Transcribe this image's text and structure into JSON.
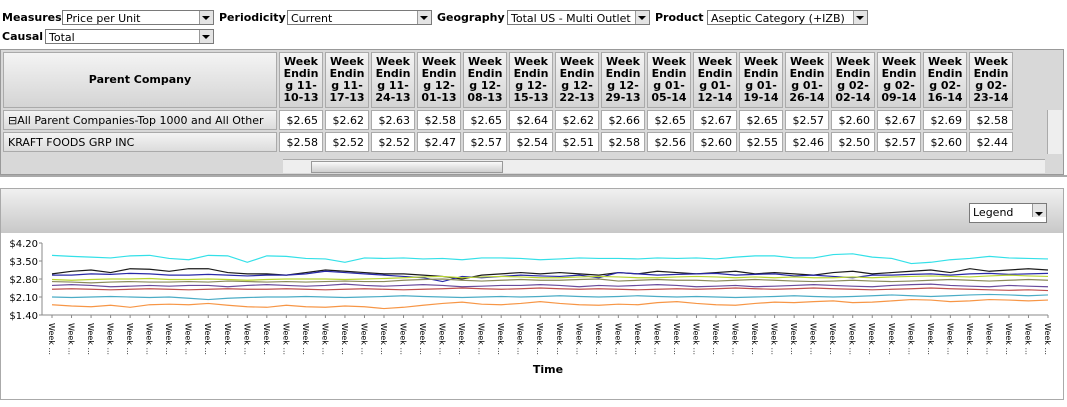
{
  "filters": [
    {
      "label": "Measures",
      "value": "Price per Unit"
    },
    {
      "label": "Periodicity",
      "value": "Current"
    },
    {
      "label": "Geography",
      "value": "Total US - Multi Outlet"
    },
    {
      "label": "Product",
      "value": "Aseptic Category (+IZB)"
    },
    {
      "label": "Causal",
      "value": "Total"
    }
  ],
  "table": {
    "header": "Parent Company",
    "columns": [
      "Week Ending 11-10-13",
      "Week Ending 11-17-13",
      "Week Ending 11-24-13",
      "Week Ending 12-01-13",
      "Week Ending 12-08-13",
      "Week Ending 12-15-13",
      "Week Ending 12-22-13",
      "Week Ending 12-29-13",
      "Week Ending 01-05-14",
      "Week Ending 01-12-14",
      "Week Ending 01-19-14",
      "Week Ending 01-26-14",
      "Week Ending 02-02-14",
      "Week Ending 02-09-14",
      "Week Ending 02-16-14",
      "Week Ending 02-23-14"
    ],
    "rows": [
      {
        "name": "All Parent Companies-Top 1000 and All Other",
        "cells": [
          "$2.65",
          "$2.62",
          "$2.63",
          "$2.58",
          "$2.65",
          "$2.64",
          "$2.62",
          "$2.66",
          "$2.65",
          "$2.67",
          "$2.65",
          "$2.57",
          "$2.60",
          "$2.67",
          "$2.69",
          "$2.58"
        ]
      },
      {
        "name": "KRAFT FOODS GRP INC",
        "cells": [
          "$2.58",
          "$2.52",
          "$2.52",
          "$2.47",
          "$2.57",
          "$2.54",
          "$2.51",
          "$2.58",
          "$2.56",
          "$2.60",
          "$2.55",
          "$2.46",
          "$2.50",
          "$2.57",
          "$2.60",
          "$2.44"
        ]
      }
    ]
  },
  "legend_button": "Legend",
  "chart_data": {
    "type": "line",
    "x_label": "Time",
    "grid": false,
    "ylim": [
      1.4,
      4.2
    ],
    "yticks": [
      {
        "value": 1.4,
        "label": "$1.40"
      },
      {
        "value": 2.1,
        "label": "$2.10"
      },
      {
        "value": 2.8,
        "label": "$2.80"
      },
      {
        "value": 3.5,
        "label": "$3.50"
      },
      {
        "value": 4.2,
        "label": "$4.20"
      }
    ],
    "categories": [
      "Week ...",
      "Week ...",
      "Week ...",
      "Week ...",
      "Week ...",
      "Week ...",
      "Week ...",
      "Week ...",
      "Week ...",
      "Week ...",
      "Week ...",
      "Week ...",
      "Week ...",
      "Week ...",
      "Week ...",
      "Week ...",
      "Week ...",
      "Week ...",
      "Week ...",
      "Week ...",
      "Week ...",
      "Week ...",
      "Week ...",
      "Week ...",
      "Week ...",
      "Week ...",
      "Week ...",
      "Week ...",
      "Week ...",
      "Week ...",
      "Week ...",
      "Week ...",
      "Week ...",
      "Week ...",
      "Week ...",
      "Week ...",
      "Week ...",
      "Week ...",
      "Week ...",
      "Week ...",
      "Week ...",
      "Week ...",
      "Week ...",
      "Week ...",
      "Week ...",
      "Week ...",
      "Week ...",
      "Week ...",
      "Week ...",
      "Week ...",
      "Week ...",
      "Week ..."
    ],
    "series": [
      {
        "color": "#33e0e8",
        "values": [
          3.72,
          3.68,
          3.65,
          3.62,
          3.7,
          3.72,
          3.6,
          3.55,
          3.72,
          3.7,
          3.45,
          3.7,
          3.68,
          3.6,
          3.58,
          3.45,
          3.62,
          3.6,
          3.62,
          3.58,
          3.6,
          3.55,
          3.62,
          3.62,
          3.6,
          3.55,
          3.58,
          3.62,
          3.6,
          3.6,
          3.58,
          3.62,
          3.6,
          3.62,
          3.58,
          3.65,
          3.7,
          3.7,
          3.62,
          3.62,
          3.75,
          3.78,
          3.65,
          3.6,
          3.4,
          3.45,
          3.55,
          3.6,
          3.68,
          3.62,
          3.6,
          3.58
        ]
      },
      {
        "color": "#1a1a1a",
        "values": [
          3.0,
          3.1,
          3.15,
          3.05,
          3.2,
          3.18,
          3.1,
          3.2,
          3.2,
          3.05,
          3.0,
          3.0,
          2.95,
          3.05,
          3.15,
          3.1,
          3.05,
          3.0,
          3.0,
          2.95,
          2.9,
          2.8,
          2.95,
          3.0,
          3.05,
          3.0,
          3.05,
          3.0,
          2.95,
          3.05,
          3.0,
          3.1,
          3.05,
          3.0,
          3.05,
          3.1,
          3.0,
          3.05,
          3.0,
          2.95,
          3.05,
          3.1,
          3.0,
          3.05,
          3.1,
          3.15,
          3.05,
          3.2,
          3.1,
          3.15,
          3.2,
          3.15
        ]
      },
      {
        "color": "#2a2aa8",
        "values": [
          2.95,
          2.95,
          3.0,
          2.98,
          3.02,
          3.0,
          2.95,
          2.95,
          2.98,
          2.95,
          2.92,
          2.95,
          2.95,
          3.0,
          3.1,
          3.05,
          3.0,
          2.95,
          2.9,
          2.85,
          2.7,
          2.9,
          2.85,
          2.9,
          2.95,
          2.92,
          2.9,
          2.95,
          2.85,
          3.05,
          3.0,
          2.95,
          2.98,
          3.0,
          3.02,
          2.95,
          2.98,
          3.0,
          2.92,
          2.95,
          2.9,
          2.85,
          2.95,
          2.95,
          2.98,
          3.0,
          2.95,
          3.0,
          3.02,
          2.98,
          3.0,
          3.02
        ]
      },
      {
        "color": "#b8d430",
        "values": [
          2.78,
          2.75,
          2.78,
          2.8,
          2.8,
          2.82,
          2.78,
          2.78,
          2.8,
          2.78,
          2.75,
          2.78,
          2.8,
          2.8,
          2.8,
          2.78,
          2.8,
          2.82,
          2.85,
          2.88,
          2.9,
          2.85,
          2.88,
          2.9,
          2.88,
          2.85,
          2.85,
          2.88,
          2.9,
          2.88,
          2.85,
          2.85,
          2.88,
          2.9,
          2.88,
          2.85,
          2.88,
          2.85,
          2.88,
          2.85,
          2.85,
          2.88,
          2.85,
          2.88,
          2.9,
          2.92,
          2.9,
          2.88,
          2.92,
          2.95,
          2.92,
          2.9
        ]
      },
      {
        "color": "#8a8a5a",
        "values": [
          2.7,
          2.68,
          2.65,
          2.68,
          2.7,
          2.68,
          2.68,
          2.7,
          2.68,
          2.72,
          2.7,
          2.68,
          2.7,
          2.68,
          2.7,
          2.72,
          2.7,
          2.7,
          2.75,
          2.78,
          2.8,
          2.75,
          2.72,
          2.75,
          2.78,
          2.75,
          2.75,
          2.78,
          2.8,
          2.72,
          2.75,
          2.78,
          2.75,
          2.75,
          2.72,
          2.75,
          2.78,
          2.75,
          2.72,
          2.7,
          2.72,
          2.75,
          2.72,
          2.7,
          2.72,
          2.75,
          2.78,
          2.75,
          2.72,
          2.75,
          2.78,
          2.75
        ]
      },
      {
        "color": "#6a4c9c",
        "values": [
          2.55,
          2.58,
          2.55,
          2.5,
          2.52,
          2.55,
          2.52,
          2.55,
          2.55,
          2.5,
          2.55,
          2.58,
          2.55,
          2.52,
          2.55,
          2.6,
          2.55,
          2.52,
          2.55,
          2.58,
          2.55,
          2.5,
          2.52,
          2.55,
          2.55,
          2.58,
          2.55,
          2.5,
          2.55,
          2.52,
          2.55,
          2.58,
          2.55,
          2.5,
          2.52,
          2.55,
          2.5,
          2.52,
          2.55,
          2.58,
          2.55,
          2.52,
          2.5,
          2.55,
          2.58,
          2.6,
          2.55,
          2.52,
          2.5,
          2.55,
          2.52,
          2.5
        ]
      },
      {
        "color": "#c0504d",
        "values": [
          2.4,
          2.42,
          2.4,
          2.38,
          2.4,
          2.42,
          2.4,
          2.38,
          2.4,
          2.42,
          2.4,
          2.4,
          2.42,
          2.4,
          2.38,
          2.4,
          2.42,
          2.4,
          2.38,
          2.4,
          2.42,
          2.45,
          2.42,
          2.4,
          2.42,
          2.45,
          2.42,
          2.4,
          2.42,
          2.4,
          2.38,
          2.4,
          2.42,
          2.4,
          2.42,
          2.45,
          2.42,
          2.4,
          2.42,
          2.45,
          2.42,
          2.4,
          2.38,
          2.4,
          2.42,
          2.45,
          2.42,
          2.4,
          2.38,
          2.36,
          2.38,
          2.35
        ]
      },
      {
        "color": "#4bacc6",
        "values": [
          2.1,
          2.08,
          2.1,
          2.12,
          2.1,
          2.08,
          2.1,
          2.05,
          2.0,
          2.05,
          2.08,
          2.1,
          2.1,
          2.12,
          2.1,
          2.08,
          2.1,
          2.12,
          2.15,
          2.12,
          2.1,
          2.08,
          2.1,
          2.12,
          2.1,
          2.12,
          2.15,
          2.12,
          2.1,
          2.12,
          2.15,
          2.12,
          2.1,
          2.12,
          2.1,
          2.08,
          2.1,
          2.12,
          2.15,
          2.12,
          2.1,
          2.12,
          2.15,
          2.18,
          2.15,
          2.12,
          2.15,
          2.18,
          2.2,
          2.18,
          2.15,
          2.18
        ]
      },
      {
        "color": "#f79646",
        "values": [
          1.8,
          1.75,
          1.72,
          1.78,
          1.7,
          1.8,
          1.82,
          1.8,
          1.85,
          1.78,
          1.72,
          1.7,
          1.78,
          1.72,
          1.7,
          1.75,
          1.72,
          1.65,
          1.7,
          1.78,
          1.85,
          1.9,
          1.82,
          1.8,
          1.85,
          1.92,
          1.85,
          1.8,
          1.78,
          1.82,
          1.8,
          1.88,
          1.92,
          1.85,
          1.8,
          1.78,
          1.85,
          1.9,
          1.88,
          1.92,
          1.95,
          1.88,
          1.9,
          1.95,
          2.0,
          1.98,
          1.92,
          1.95,
          2.0,
          1.98,
          1.95,
          1.98
        ]
      }
    ]
  }
}
